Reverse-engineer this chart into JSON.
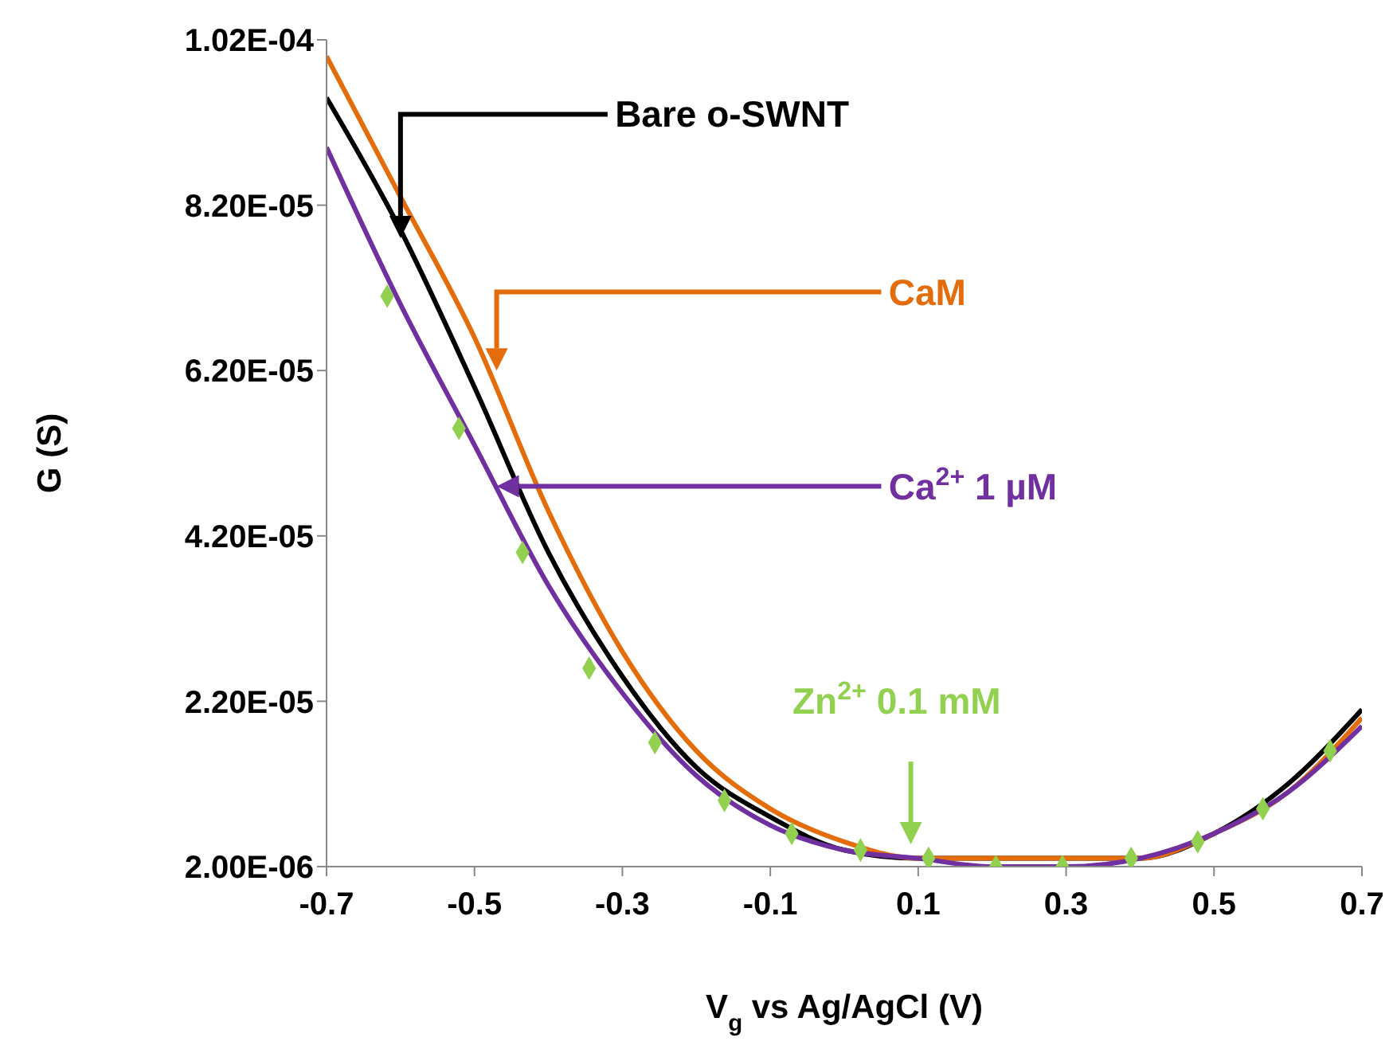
{
  "chart_data": {
    "type": "line",
    "xlabel": "V$_{g}$ vs Ag/AgCl (V)",
    "ylabel": "G (S)",
    "xlim": [
      -0.7,
      0.7
    ],
    "xticks": [
      -0.7,
      -0.5,
      -0.3,
      -0.1,
      0.1,
      0.3,
      0.5,
      0.7
    ],
    "ylim": [
      2e-06,
      0.000102
    ],
    "yticks": [
      {
        "value": 2e-06,
        "label": "2.00E-06"
      },
      {
        "value": 2.2e-05,
        "label": "2.20E-05"
      },
      {
        "value": 4.2e-05,
        "label": "4.20E-05"
      },
      {
        "value": 6.2e-05,
        "label": "6.20E-05"
      },
      {
        "value": 8.2e-05,
        "label": "8.20E-05"
      },
      {
        "value": 0.000102,
        "label": "1.02E-04"
      }
    ],
    "line_style": "solid",
    "marker": "none",
    "series": [
      {
        "name": "Bare o-SWNT",
        "color": "#000000",
        "x": [
          -0.7,
          -0.6,
          -0.5,
          -0.4,
          -0.3,
          -0.2,
          -0.1,
          0,
          0.1,
          0.2,
          0.3,
          0.4,
          0.5,
          0.6,
          0.7
        ],
        "values": [
          9.5e-05,
          7.9e-05,
          6e-05,
          4e-05,
          2.5e-05,
          1.4e-05,
          8e-06,
          4e-06,
          3e-06,
          3e-06,
          3e-06,
          3e-06,
          6e-06,
          1.2e-05,
          2.1e-05
        ]
      },
      {
        "name": "CaM",
        "color": "#e46c0a",
        "x": [
          -0.7,
          -0.6,
          -0.5,
          -0.4,
          -0.3,
          -0.2,
          -0.1,
          0,
          0.1,
          0.2,
          0.3,
          0.4,
          0.5,
          0.6,
          0.7
        ],
        "values": [
          0.0001,
          8.3e-05,
          6.6e-05,
          4.5e-05,
          2.8e-05,
          1.6e-05,
          9e-06,
          5e-06,
          3e-06,
          3e-06,
          3e-06,
          3e-06,
          6e-06,
          1.1e-05,
          2e-05
        ]
      },
      {
        "name": "Ca$^{2+}$ 1 µM",
        "color": "#7030a0",
        "x": [
          -0.7,
          -0.6,
          -0.5,
          -0.4,
          -0.3,
          -0.2,
          -0.1,
          0,
          0.1,
          0.2,
          0.3,
          0.4,
          0.5,
          0.6,
          0.7
        ],
        "values": [
          8.9e-05,
          7e-05,
          5.3e-05,
          3.6e-05,
          2.3e-05,
          1.3e-05,
          7e-06,
          4e-06,
          3e-06,
          2e-06,
          2e-06,
          3e-06,
          6e-06,
          1.1e-05,
          1.9e-05
        ]
      },
      {
        "name": "Zn$^{2+}$ 0.1 mM",
        "color": "#92d050",
        "type": "scatter",
        "marker": "diamond",
        "x": [
          -0.618,
          -0.521,
          -0.435,
          -0.345,
          -0.256,
          -0.162,
          -0.071,
          0.022,
          0.114,
          0.205,
          0.295,
          0.388,
          0.478,
          0.566,
          0.657
        ],
        "values": [
          7.1e-05,
          5.5e-05,
          4e-05,
          2.6e-05,
          1.7e-05,
          1e-05,
          6e-06,
          4e-06,
          3e-06,
          2e-06,
          2e-06,
          3e-06,
          5e-06,
          9e-06,
          1.6e-05
        ]
      }
    ]
  }
}
